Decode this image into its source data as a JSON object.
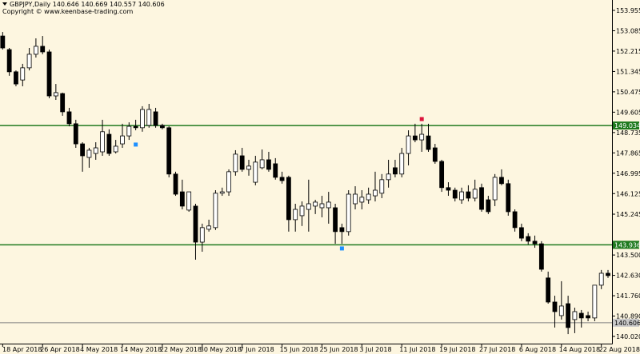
{
  "chart_data": {
    "type": "candlestick",
    "title": "GBPJPY,Daily  140.646 140.669 140.557 140.606",
    "subtitle": "Copyright © www.keenbase-trading.com",
    "categories": [
      "18 Apr 2018",
      null,
      null,
      null,
      null,
      null,
      "26 Apr 2018",
      null,
      null,
      null,
      null,
      null,
      "4 May 2018",
      null,
      null,
      null,
      null,
      null,
      "14 May 2018",
      null,
      null,
      null,
      null,
      null,
      "22 May 2018",
      null,
      null,
      null,
      null,
      null,
      "30 May 2018",
      null,
      null,
      null,
      null,
      null,
      "7 Jun 2018",
      null,
      null,
      null,
      null,
      null,
      "15 Jun 2018",
      null,
      null,
      null,
      null,
      null,
      "25 Jun 2018",
      null,
      null,
      null,
      null,
      null,
      "3 Jul 2018",
      null,
      null,
      null,
      null,
      null,
      "11 Jul 2018",
      null,
      null,
      null,
      null,
      null,
      "19 Jul 2018",
      null,
      null,
      null,
      null,
      null,
      "27 Jul 2018",
      null,
      null,
      null,
      null,
      null,
      "6 Aug 2018",
      null,
      null,
      null,
      null,
      null,
      "14 Aug 2018",
      null,
      null,
      null,
      null,
      null,
      "22 Aug 2018",
      null
    ],
    "open": [
      152.86,
      152.28,
      151.33,
      150.98,
      151.5,
      152.08,
      152.42,
      152.18,
      150.3,
      150.4,
      149.62,
      149.11,
      148.25,
      147.67,
      147.84,
      147.91,
      148.66,
      147.91,
      148.25,
      148.59,
      149.0,
      148.94,
      149.04,
      149.62,
      149.04,
      148.94,
      146.96,
      146.2,
      145.42,
      145.59,
      144.05,
      144.6,
      144.67,
      146.14,
      146.2,
      147.06,
      147.74,
      147.16,
      146.61,
      147.23,
      147.57,
      147.4,
      146.82,
      146.82,
      145.01,
      145.18,
      145.45,
      145.59,
      145.52,
      145.52,
      145.52,
      144.67,
      144.5,
      145.69,
      145.76,
      145.86,
      146.03,
      146.14,
      146.72,
      147.23,
      146.96,
      147.84,
      148.59,
      148.42,
      148.59,
      148.08,
      147.5,
      146.38,
      146.27,
      145.86,
      146.2,
      145.93,
      146.38,
      145.86,
      145.86,
      146.82,
      146.55,
      145.35,
      144.67,
      144.29,
      144.09,
      143.98,
      142.52,
      141.49,
      140.91,
      141.42,
      140.74,
      141.01,
      140.91,
      140.81,
      142.21,
      142.72
    ],
    "high": [
      153.03,
      152.35,
      151.39,
      151.67,
      152.35,
      152.76,
      152.86,
      152.28,
      150.81,
      150.44,
      149.79,
      149.28,
      148.32,
      148.08,
      148.32,
      149.28,
      148.87,
      148.42,
      149.11,
      149.17,
      149.28,
      149.86,
      149.96,
      149.79,
      149.11,
      149.0,
      147.06,
      146.72,
      146.2,
      145.69,
      144.84,
      145.01,
      146.27,
      146.38,
      147.16,
      147.98,
      148.08,
      147.57,
      147.74,
      148.01,
      147.91,
      147.64,
      147.06,
      146.89,
      145.69,
      145.79,
      146.72,
      145.86,
      146.03,
      146.2,
      145.69,
      144.84,
      146.27,
      146.44,
      146.27,
      146.38,
      147.06,
      146.96,
      147.57,
      147.57,
      148.08,
      148.83,
      149.11,
      149.11,
      149.11,
      148.25,
      147.57,
      146.61,
      146.38,
      146.38,
      146.48,
      146.72,
      146.55,
      146.03,
      146.96,
      147.16,
      146.72,
      145.45,
      144.84,
      144.43,
      144.33,
      144.09,
      142.79,
      141.76,
      142.38,
      141.76,
      141.25,
      141.15,
      141.08,
      142.21,
      142.86,
      142.86
    ],
    "low": [
      152.28,
      151.16,
      150.71,
      150.71,
      151.39,
      151.94,
      152.08,
      150.2,
      150.13,
      149.45,
      149.0,
      148.08,
      147.06,
      147.23,
      147.57,
      147.74,
      147.74,
      147.84,
      148.08,
      148.42,
      148.83,
      148.77,
      148.94,
      148.94,
      148.87,
      146.82,
      146.03,
      145.45,
      145.35,
      143.3,
      143.64,
      144.5,
      144.57,
      146.03,
      146.03,
      146.89,
      147.06,
      146.89,
      146.48,
      147.16,
      147.06,
      146.72,
      146.55,
      144.5,
      144.5,
      144.74,
      144.5,
      145.25,
      145.11,
      144.84,
      143.98,
      143.98,
      144.33,
      145.45,
      145.45,
      145.69,
      145.79,
      145.93,
      146.38,
      146.82,
      146.82,
      147.33,
      148.32,
      147.91,
      147.91,
      147.4,
      146.2,
      146.03,
      145.79,
      145.69,
      145.79,
      145.79,
      145.35,
      145.25,
      145.59,
      146.48,
      145.18,
      144.5,
      144.09,
      143.95,
      143.81,
      142.79,
      141.42,
      140.4,
      140.74,
      140.12,
      140.16,
      140.4,
      140.67,
      140.67,
      142.04,
      142.52
    ],
    "close": [
      152.35,
      151.33,
      150.81,
      151.5,
      152.08,
      152.42,
      152.18,
      150.3,
      150.44,
      149.62,
      149.11,
      148.25,
      147.74,
      147.98,
      148.08,
      148.77,
      147.84,
      148.15,
      148.59,
      149.0,
      148.94,
      149.72,
      149.72,
      149.04,
      148.94,
      146.96,
      146.1,
      145.59,
      146.2,
      144.05,
      144.67,
      144.74,
      146.14,
      146.2,
      147.06,
      147.81,
      147.16,
      147.3,
      147.47,
      147.57,
      147.16,
      146.82,
      146.68,
      145.01,
      145.45,
      145.59,
      145.69,
      145.76,
      145.69,
      145.76,
      144.5,
      144.5,
      146.1,
      146.1,
      145.97,
      146.1,
      146.27,
      146.72,
      146.96,
      146.96,
      147.84,
      148.59,
      148.42,
      148.66,
      148.01,
      147.5,
      146.38,
      146.27,
      145.93,
      146.2,
      145.93,
      146.31,
      145.45,
      145.35,
      146.82,
      146.55,
      145.35,
      144.67,
      144.22,
      144.09,
      143.98,
      142.89,
      141.49,
      141.08,
      141.32,
      140.4,
      141.08,
      140.81,
      140.81,
      142.21,
      142.72,
      142.62
    ],
    "up_color": "#ffffff",
    "down_color": "#000000",
    "ylim": [
      139.713,
      154.399
    ],
    "yticks": [
      153.955,
      153.085,
      152.215,
      151.345,
      150.475,
      149.605,
      148.735,
      147.865,
      146.995,
      146.125,
      145.245,
      {
        "value": 143.5,
        "label": "143.500"
      },
      {
        "value": 142.63,
        "label": "142.630"
      },
      {
        "value": 141.76,
        "label": "141.760"
      },
      {
        "value": 140.89,
        "label": "140.890"
      },
      {
        "value": 140.02,
        "label": "140.020"
      }
    ],
    "levels": [
      {
        "value": 149.034,
        "color": "#1f7a1f"
      },
      {
        "value": 143.936,
        "color": "#1f7a1f"
      },
      {
        "value": 140.606,
        "color": "#808080"
      }
    ],
    "signals": [
      {
        "x": 20,
        "value": 148.22,
        "color": "#1e90ff"
      },
      {
        "x": 51,
        "value": 143.78,
        "color": "#1e90ff"
      },
      {
        "x": 63,
        "value": 149.31,
        "color": "#dc143c"
      }
    ]
  }
}
